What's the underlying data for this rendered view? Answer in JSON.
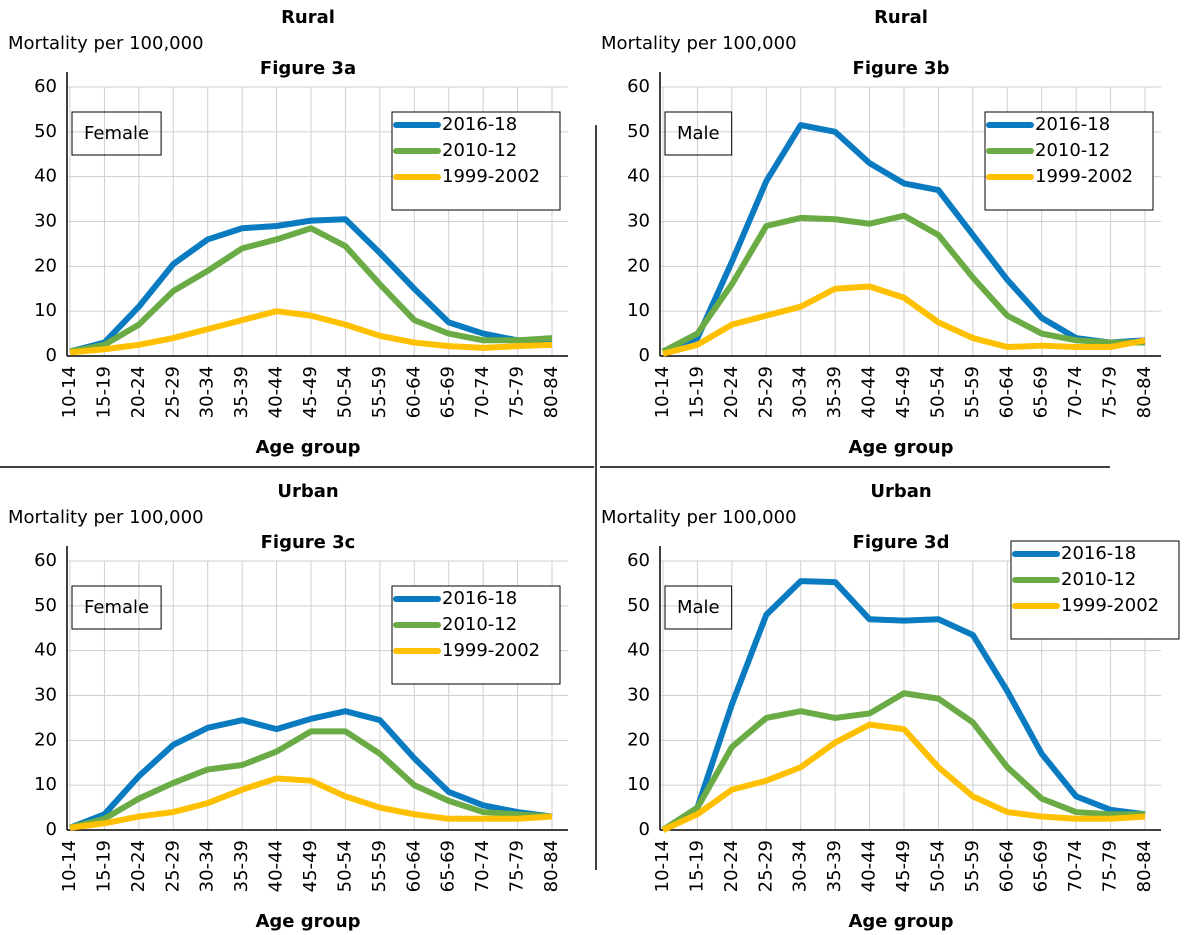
{
  "chart_data": [
    {
      "type": "line",
      "title": "Rural",
      "ylabel": "Mortality per 100,000",
      "subtitle": "Figure 3a",
      "xlabel": "Age group",
      "annotation": "Female",
      "categories": [
        "10-14",
        "15-19",
        "20-24",
        "25-29",
        "30-34",
        "35-39",
        "40-44",
        "45-49",
        "50-54",
        "55-59",
        "60-64",
        "65-69",
        "70-74",
        "75-79",
        "80-84"
      ],
      "series": [
        {
          "name": "2016-18",
          "color": "#0b7bc1",
          "values": [
            1,
            3,
            11,
            20.5,
            26,
            28.5,
            29,
            30.2,
            30.5,
            23,
            15,
            7.5,
            5,
            3.5,
            3.5
          ]
        },
        {
          "name": "2010-12",
          "color": "#6aab45",
          "values": [
            1,
            2.5,
            7,
            14.5,
            19,
            24,
            26,
            28.5,
            24.5,
            16,
            8,
            5,
            3.5,
            3.5,
            4
          ]
        },
        {
          "name": "1999-2002",
          "color": "#ffc000",
          "values": [
            0.8,
            1.5,
            2.5,
            4,
            6,
            8,
            10,
            9,
            7,
            4.5,
            3,
            2.2,
            1.8,
            2.2,
            2.5
          ]
        }
      ],
      "ylim": [
        0,
        60
      ],
      "yticks": [
        0,
        10,
        20,
        30,
        40,
        50,
        60
      ],
      "grid": true,
      "legend": "upper right"
    },
    {
      "type": "line",
      "title": "Rural",
      "ylabel": "Mortality per 100,000",
      "subtitle": "Figure 3b",
      "xlabel": "Age group",
      "annotation": "Male",
      "categories": [
        "10-14",
        "15-19",
        "20-24",
        "25-29",
        "30-34",
        "35-39",
        "40-44",
        "45-49",
        "50-54",
        "55-59",
        "60-64",
        "65-69",
        "70-74",
        "75-79",
        "80-84"
      ],
      "series": [
        {
          "name": "2016-18",
          "color": "#0b7bc1",
          "values": [
            1,
            4,
            21,
            39,
            51.5,
            50,
            43,
            38.5,
            37,
            27,
            17,
            8.5,
            4,
            3,
            3.5
          ]
        },
        {
          "name": "2010-12",
          "color": "#6aab45",
          "values": [
            1,
            5,
            16,
            29,
            30.8,
            30.5,
            29.5,
            31.3,
            27,
            17.5,
            9,
            5,
            3.5,
            3,
            3
          ]
        },
        {
          "name": "1999-2002",
          "color": "#ffc000",
          "values": [
            0.5,
            2.5,
            7,
            9,
            11,
            15,
            15.5,
            13,
            7.5,
            4,
            2,
            2.3,
            2,
            2,
            3.5
          ]
        }
      ],
      "ylim": [
        0,
        60
      ],
      "yticks": [
        0,
        10,
        20,
        30,
        40,
        50,
        60
      ],
      "grid": true,
      "legend": "upper right"
    },
    {
      "type": "line",
      "title": "Urban",
      "ylabel": "Mortality per 100,000",
      "subtitle": "Figure 3c",
      "xlabel": "Age group",
      "annotation": "Female",
      "categories": [
        "10-14",
        "15-19",
        "20-24",
        "25-29",
        "30-34",
        "35-39",
        "40-44",
        "45-49",
        "50-54",
        "55-59",
        "60-64",
        "65-69",
        "70-74",
        "75-79",
        "80-84"
      ],
      "series": [
        {
          "name": "2016-18",
          "color": "#0b7bc1",
          "values": [
            0.5,
            3.5,
            12,
            19,
            22.8,
            24.5,
            22.5,
            24.8,
            26.5,
            24.5,
            16,
            8.5,
            5.5,
            4,
            3
          ]
        },
        {
          "name": "2010-12",
          "color": "#6aab45",
          "values": [
            0.5,
            2.5,
            7,
            10.5,
            13.5,
            14.5,
            17.5,
            22,
            22,
            17,
            10,
            6.5,
            4,
            3.5,
            3
          ]
        },
        {
          "name": "1999-2002",
          "color": "#ffc000",
          "values": [
            0.5,
            1.5,
            3,
            4,
            6,
            9,
            11.5,
            11,
            7.5,
            5,
            3.5,
            2.5,
            2.5,
            2.5,
            3
          ]
        }
      ],
      "ylim": [
        0,
        60
      ],
      "yticks": [
        0,
        10,
        20,
        30,
        40,
        50,
        60
      ],
      "grid": true,
      "legend": "upper right"
    },
    {
      "type": "line",
      "title": "Urban",
      "ylabel": "Mortality per 100,000",
      "subtitle": "Figure 3d",
      "xlabel": "Age group",
      "annotation": "Male",
      "categories": [
        "10-14",
        "15-19",
        "20-24",
        "25-29",
        "30-34",
        "35-39",
        "40-44",
        "45-49",
        "50-54",
        "55-59",
        "60-64",
        "65-69",
        "70-74",
        "75-79",
        "80-84"
      ],
      "series": [
        {
          "name": "2016-18",
          "color": "#0b7bc1",
          "values": [
            0,
            5,
            28,
            48,
            55.5,
            55.3,
            47,
            46.7,
            47,
            43.5,
            31,
            17,
            7.5,
            4.5,
            3.5
          ]
        },
        {
          "name": "2010-12",
          "color": "#6aab45",
          "values": [
            0,
            5,
            18.5,
            25,
            26.5,
            25,
            26,
            30.5,
            29.3,
            24,
            14,
            7,
            4,
            3.5,
            3.5
          ]
        },
        {
          "name": "1999-2002",
          "color": "#ffc000",
          "values": [
            0,
            3.5,
            9,
            11,
            14,
            19.5,
            23.5,
            22.5,
            14,
            7.5,
            4,
            3,
            2.5,
            2.5,
            3
          ]
        }
      ],
      "ylim": [
        0,
        60
      ],
      "yticks": [
        0,
        10,
        20,
        30,
        40,
        50,
        60
      ],
      "grid": true,
      "legend": "top right"
    }
  ]
}
